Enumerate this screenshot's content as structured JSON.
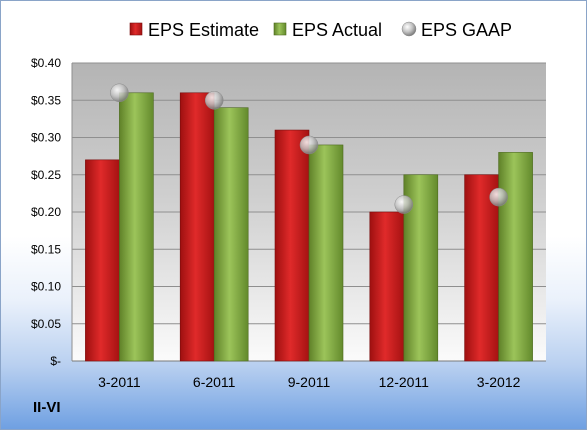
{
  "ticker": "II-VI",
  "chart_data": {
    "type": "bar",
    "title": "",
    "xlabel": "",
    "ylabel": "",
    "categories": [
      "3-2011",
      "6-2011",
      "9-2011",
      "12-2011",
      "3-2012"
    ],
    "series": [
      {
        "name": "EPS Estimate",
        "kind": "bar",
        "color": "#d42020",
        "values": [
          0.27,
          0.36,
          0.31,
          0.2,
          0.25
        ]
      },
      {
        "name": "EPS Actual",
        "kind": "bar",
        "color": "#8eb548",
        "values": [
          0.36,
          0.34,
          0.29,
          0.25,
          0.28
        ]
      },
      {
        "name": "EPS GAAP",
        "kind": "marker",
        "color": "#c8c8c8",
        "values": [
          0.36,
          0.35,
          0.29,
          0.21,
          0.22
        ]
      }
    ],
    "ylim": [
      0,
      0.4
    ],
    "yticks": [
      0,
      0.05,
      0.1,
      0.15,
      0.2,
      0.25,
      0.3,
      0.35,
      0.4
    ],
    "ytick_labels": [
      "$-",
      "$0.05",
      "$0.10",
      "$0.15",
      "$0.20",
      "$0.25",
      "$0.30",
      "$0.35",
      "$0.40"
    ],
    "grid": true,
    "legend_position": "top"
  }
}
